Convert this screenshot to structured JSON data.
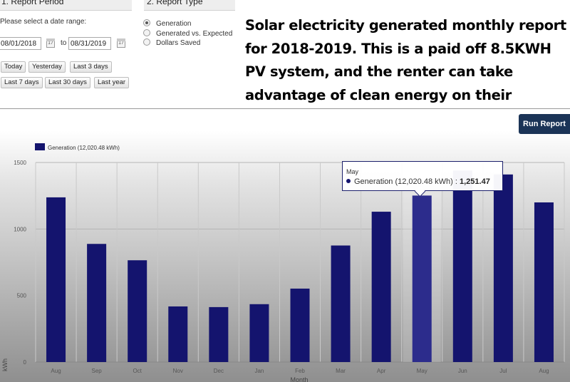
{
  "report_period": {
    "title": "1. Report Period",
    "prompt": "Please select a date range:",
    "from_date": "08/01/2018",
    "to_label": "to",
    "to_date": "08/31/2019",
    "quick_ranges": [
      "Today",
      "Yesterday",
      "Last 3 days",
      "Last 7 days",
      "Last 30 days",
      "Last year"
    ]
  },
  "report_type": {
    "title": "2. Report Type",
    "options": [
      {
        "label": "Generation",
        "checked": true
      },
      {
        "label": "Generated vs. Expected",
        "checked": false
      },
      {
        "label": "Dollars Saved",
        "checked": false
      }
    ]
  },
  "caption": "Solar electricity generated monthly report for 2018-2019. This is a paid off 8.5KWH PV system, and the renter can take advantage of clean energy on their electric monthly bills.",
  "run_report_label": "Run Report",
  "tooltip": {
    "month": "May",
    "series": "Generation (12,020.48 kWh)",
    "separator": ":",
    "value": "1,251.47"
  },
  "colors": {
    "bar": "#14146e",
    "bar_highlight": "#2c2c8c",
    "run_button": "#1b3457"
  },
  "chart_data": {
    "type": "bar",
    "categories": [
      "Aug",
      "Sep",
      "Oct",
      "Nov",
      "Dec",
      "Jan",
      "Feb",
      "Mar",
      "Apr",
      "May",
      "Jun",
      "Jul",
      "Aug"
    ],
    "series": [
      {
        "name": "Generation (12,020.48 kWh)",
        "values": [
          1238,
          888,
          765,
          418,
          413,
          435,
          552,
          876,
          1130,
          1251.47,
          1440,
          1410,
          1200
        ]
      }
    ],
    "highlighted_index": 9,
    "ylim": [
      0,
      1500
    ],
    "yticks": [
      0,
      500,
      1000,
      1500
    ],
    "xlabel": "Month",
    "ylabel": "kWh",
    "legend": "top-left",
    "grid": true
  }
}
